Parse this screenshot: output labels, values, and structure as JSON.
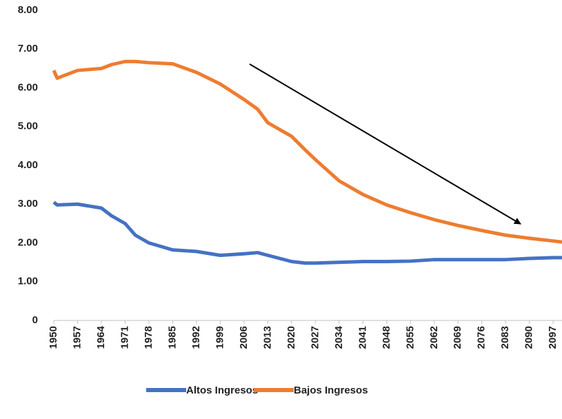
{
  "chart_data": {
    "type": "line",
    "x": [
      1950,
      1951,
      1957,
      1964,
      1967,
      1971,
      1974,
      1978,
      1985,
      1992,
      1999,
      2006,
      2010,
      2013,
      2020,
      2024,
      2027,
      2034,
      2041,
      2048,
      2055,
      2062,
      2069,
      2076,
      2083,
      2090,
      2097,
      2100
    ],
    "series": [
      {
        "name": "Altos Ingresos",
        "color": "#4472c4",
        "values": [
          3.05,
          2.98,
          3.0,
          2.9,
          2.7,
          2.5,
          2.2,
          2.0,
          1.82,
          1.78,
          1.68,
          1.72,
          1.75,
          1.68,
          1.52,
          1.48,
          1.48,
          1.5,
          1.52,
          1.52,
          1.53,
          1.57,
          1.57,
          1.57,
          1.57,
          1.6,
          1.62,
          1.62
        ]
      },
      {
        "name": "Bajos Ingresos",
        "color": "#ed7d31",
        "values": [
          6.45,
          6.25,
          6.45,
          6.5,
          6.6,
          6.68,
          6.68,
          6.65,
          6.62,
          6.4,
          6.1,
          5.7,
          5.45,
          5.1,
          4.75,
          4.4,
          4.15,
          3.6,
          3.25,
          2.98,
          2.78,
          2.6,
          2.45,
          2.32,
          2.2,
          2.12,
          2.05,
          2.02
        ]
      }
    ],
    "xlim": [
      1950,
      2100
    ],
    "xticks": [
      1950,
      1957,
      1964,
      1971,
      1978,
      1985,
      1992,
      1999,
      2006,
      2013,
      2020,
      2027,
      2034,
      2041,
      2048,
      2055,
      2062,
      2069,
      2076,
      2083,
      2090,
      2097
    ],
    "ylim": [
      0,
      8
    ],
    "yticks": [
      0,
      {
        "value": 1,
        "label": "1.00"
      },
      {
        "value": 2,
        "label": "2.00"
      },
      {
        "value": 3,
        "label": "3.00"
      },
      {
        "value": 4,
        "label": "4.00"
      },
      {
        "value": 5,
        "label": "5.00"
      },
      {
        "value": 6,
        "label": "6.00"
      },
      {
        "value": 7,
        "label": "7.00"
      },
      {
        "value": 8,
        "label": "8.00"
      }
    ],
    "grid": false,
    "legend": "bottom"
  }
}
